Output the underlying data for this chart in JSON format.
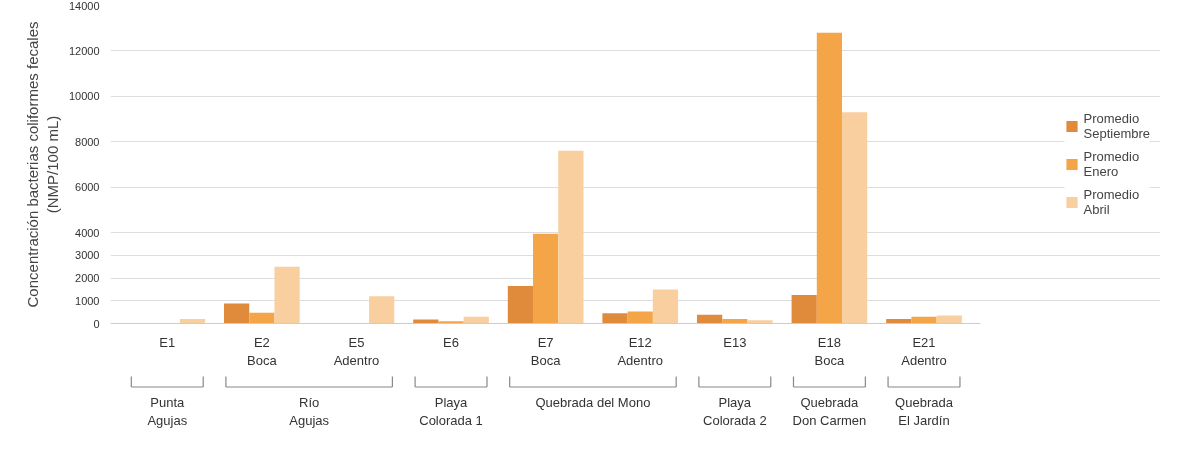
{
  "chart_data": {
    "type": "bar",
    "ylabel": "Concentración bacterias coliformes fecales\n(NMP/100 mL)",
    "categories": [
      "E1",
      "E2\nBoca",
      "E5\nAdentro",
      "E6",
      "E7\nBoca",
      "E12\nAdentro",
      "E13",
      "E18\nBoca",
      "E21\nAdentro"
    ],
    "series": [
      {
        "name": "Promedio\nSeptiembre",
        "color": "#e08a3c",
        "values": [
          0,
          880,
          0,
          180,
          1650,
          450,
          390,
          1250,
          200
        ]
      },
      {
        "name": "Promedio\nEnero",
        "color": "#f4a548",
        "values": [
          0,
          470,
          0,
          100,
          3950,
          530,
          200,
          12800,
          300
        ]
      },
      {
        "name": "Promedio\nAbril",
        "color": "#f9cf9f",
        "values": [
          200,
          2500,
          1200,
          300,
          7600,
          1500,
          140,
          9300,
          350
        ]
      }
    ],
    "ylim": [
      0,
      14000
    ],
    "yticks": [
      0,
      1000,
      2000,
      3000,
      4000,
      6000,
      8000,
      10000,
      12000,
      14000
    ],
    "grid": "y",
    "legend": "right",
    "annotations": [
      "Punta\nAgujas",
      "Río\nAgujas",
      "Playa\nColorada 1",
      "Quebrada del Mono",
      "Playa\nColorada 2",
      "Quebrada\nDon Carmen",
      "Quebrada\nEl Jardín"
    ]
  }
}
